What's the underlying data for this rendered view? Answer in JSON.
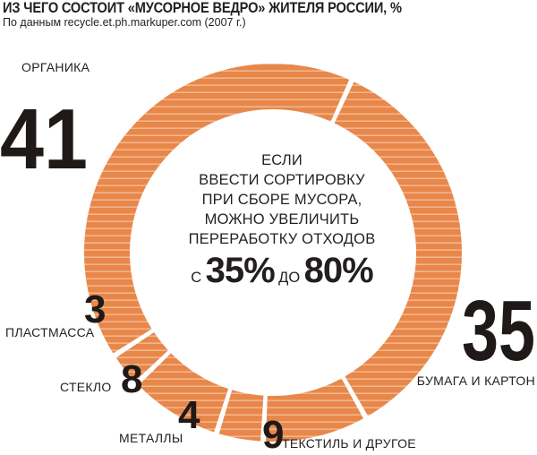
{
  "header": {
    "title": "ИЗ ЧЕГО СОСТОИТ «МУСОРНОЕ ВЕДРО» ЖИТЕЛЯ РОССИИ, %",
    "subtitle": "По данным recycle.et.ph.markuper.com (2007 г.)"
  },
  "center_note": {
    "lines": [
      "ЕСЛИ",
      "ВВЕСТИ СОРТИРОВКУ",
      "ПРИ СБОРЕ МУСОРА,",
      "МОЖНО УВЕЛИЧИТЬ",
      "ПЕРЕРАБОТКУ ОТХОДОВ"
    ],
    "from_word": "С",
    "from_value": "35%",
    "to_word": "ДО",
    "to_value": "80%"
  },
  "colors": {
    "segment": "#e8874a",
    "stripe": "#f2b58c",
    "text": "#231f20"
  },
  "chart_data": {
    "type": "pie",
    "donut": true,
    "title": "ИЗ ЧЕГО СОСТОИТ «МУСОРНОЕ ВЕДРО» ЖИТЕЛЯ РОССИИ, %",
    "categories": [
      "ОРГАНИКА",
      "БУМАГА И КАРТОН",
      "ТЕКСТИЛЬ И ДРУГОЕ",
      "МЕТАЛЛЫ",
      "СТЕКЛО",
      "ПЛАСТМАССА"
    ],
    "values": [
      41,
      35,
      9,
      4,
      8,
      3
    ]
  }
}
